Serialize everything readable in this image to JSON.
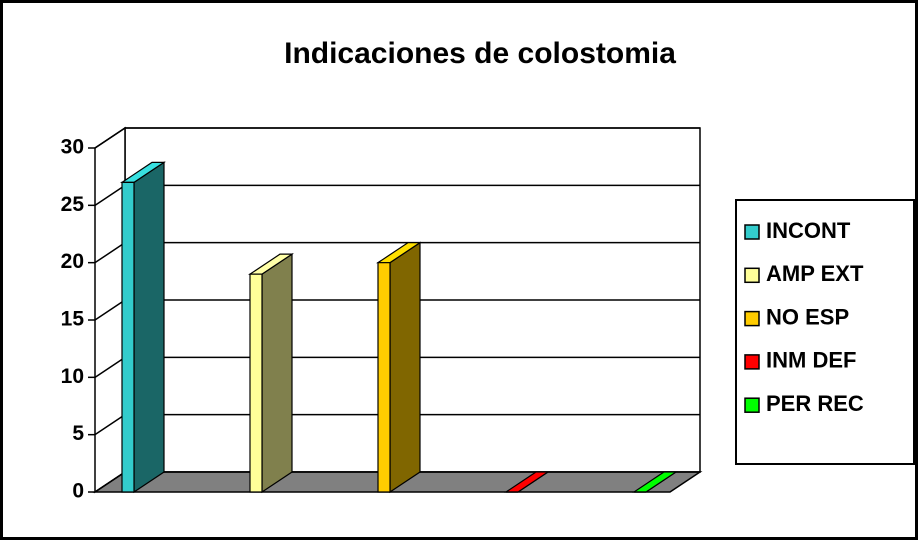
{
  "chart_data": {
    "type": "bar3d",
    "title": "Indicaciones de colostomia",
    "categories": [
      null
    ],
    "series": [
      {
        "name": "INCONT",
        "color": "#33CCCC",
        "values": [
          27
        ]
      },
      {
        "name": "AMP EXT",
        "color": "#FFFF99",
        "values": [
          19
        ]
      },
      {
        "name": "NO ESP",
        "color": "#FFCC00",
        "values": [
          20
        ]
      },
      {
        "name": "INM DEF",
        "color": "#FF0000",
        "values": [
          0
        ]
      },
      {
        "name": "PER REC",
        "color": "#00FF00",
        "values": [
          0
        ]
      }
    ],
    "ylim": [
      0,
      30
    ],
    "yticks": [
      0,
      5,
      10,
      15,
      20,
      25,
      30
    ],
    "grid": true,
    "legend": "right"
  }
}
